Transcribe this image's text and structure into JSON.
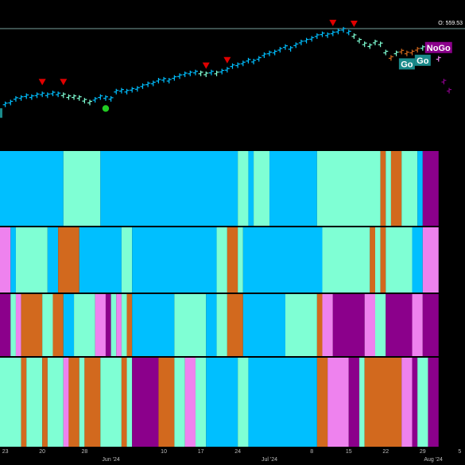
{
  "colors": {
    "background": "#000000",
    "strong_go": "#00bfff",
    "weak_go": "#7fffd4",
    "weak_nogo": "#d2691e",
    "nogo": "#ee82ee",
    "strong_nogo": "#8b008b",
    "arrow": "#e00000",
    "dot": "#22cc22",
    "grid": "#333333",
    "divider": "#2a2a2a"
  },
  "chart_data": {
    "type": "bar",
    "price_label": "O: 559.53",
    "x_ticks": [
      "23",
      "20",
      "28",
      "Jun '24",
      "10",
      "17",
      "24",
      "Jul '24",
      "8",
      "15",
      "22",
      "29",
      "Aug '24",
      "5"
    ],
    "x_tick_days": [
      -8,
      -1,
      7,
      12,
      22,
      29,
      36,
      42,
      50,
      57,
      64,
      71,
      73,
      78
    ],
    "x_range_days": [
      -9,
      79
    ],
    "y_range": [
      420,
      565
    ],
    "bars": [
      {
        "d": -8,
        "v": 470,
        "s": "strong_go"
      },
      {
        "d": -7,
        "v": 472,
        "s": "strong_go"
      },
      {
        "d": -6,
        "v": 476,
        "s": "strong_go"
      },
      {
        "d": -5,
        "v": 477,
        "s": "strong_go"
      },
      {
        "d": -4,
        "v": 479,
        "s": "strong_go"
      },
      {
        "d": -3,
        "v": 478,
        "s": "strong_go"
      },
      {
        "d": -2,
        "v": 480,
        "s": "strong_go"
      },
      {
        "d": -1,
        "v": 481,
        "s": "strong_go"
      },
      {
        "d": 0,
        "v": 480,
        "s": "strong_go"
      },
      {
        "d": 1,
        "v": 482,
        "s": "strong_go"
      },
      {
        "d": 2,
        "v": 481,
        "s": "strong_go"
      },
      {
        "d": 3,
        "v": 480,
        "s": "weak_go"
      },
      {
        "d": 4,
        "v": 478,
        "s": "weak_go"
      },
      {
        "d": 5,
        "v": 478,
        "s": "weak_go"
      },
      {
        "d": 6,
        "v": 477,
        "s": "weak_go"
      },
      {
        "d": 7,
        "v": 474,
        "s": "weak_go"
      },
      {
        "d": 8,
        "v": 472,
        "s": "weak_go"
      },
      {
        "d": 9,
        "v": 475,
        "s": "strong_go"
      },
      {
        "d": 10,
        "v": 478,
        "s": "strong_go"
      },
      {
        "d": 11,
        "v": 477,
        "s": "strong_go"
      },
      {
        "d": 12,
        "v": 476,
        "s": "strong_go"
      },
      {
        "d": 13,
        "v": 484,
        "s": "strong_go"
      },
      {
        "d": 14,
        "v": 485,
        "s": "strong_go"
      },
      {
        "d": 15,
        "v": 484,
        "s": "strong_go"
      },
      {
        "d": 16,
        "v": 486,
        "s": "strong_go"
      },
      {
        "d": 17,
        "v": 487,
        "s": "strong_go"
      },
      {
        "d": 18,
        "v": 490,
        "s": "strong_go"
      },
      {
        "d": 19,
        "v": 492,
        "s": "strong_go"
      },
      {
        "d": 20,
        "v": 493,
        "s": "strong_go"
      },
      {
        "d": 21,
        "v": 496,
        "s": "strong_go"
      },
      {
        "d": 22,
        "v": 497,
        "s": "strong_go"
      },
      {
        "d": 23,
        "v": 496,
        "s": "strong_go"
      },
      {
        "d": 24,
        "v": 499,
        "s": "strong_go"
      },
      {
        "d": 25,
        "v": 501,
        "s": "strong_go"
      },
      {
        "d": 26,
        "v": 503,
        "s": "strong_go"
      },
      {
        "d": 27,
        "v": 504,
        "s": "strong_go"
      },
      {
        "d": 28,
        "v": 505,
        "s": "strong_go"
      },
      {
        "d": 29,
        "v": 504,
        "s": "weak_go"
      },
      {
        "d": 30,
        "v": 503,
        "s": "weak_go"
      },
      {
        "d": 31,
        "v": 505,
        "s": "strong_go"
      },
      {
        "d": 32,
        "v": 504,
        "s": "weak_go"
      },
      {
        "d": 33,
        "v": 506,
        "s": "strong_go"
      },
      {
        "d": 34,
        "v": 508,
        "s": "strong_go"
      },
      {
        "d": 35,
        "v": 512,
        "s": "strong_go"
      },
      {
        "d": 36,
        "v": 513,
        "s": "strong_go"
      },
      {
        "d": 37,
        "v": 515,
        "s": "strong_go"
      },
      {
        "d": 38,
        "v": 518,
        "s": "strong_go"
      },
      {
        "d": 39,
        "v": 517,
        "s": "strong_go"
      },
      {
        "d": 40,
        "v": 520,
        "s": "strong_go"
      },
      {
        "d": 41,
        "v": 524,
        "s": "strong_go"
      },
      {
        "d": 42,
        "v": 526,
        "s": "strong_go"
      },
      {
        "d": 43,
        "v": 527,
        "s": "strong_go"
      },
      {
        "d": 44,
        "v": 530,
        "s": "strong_go"
      },
      {
        "d": 45,
        "v": 533,
        "s": "strong_go"
      },
      {
        "d": 46,
        "v": 531,
        "s": "strong_go"
      },
      {
        "d": 47,
        "v": 535,
        "s": "strong_go"
      },
      {
        "d": 48,
        "v": 538,
        "s": "strong_go"
      },
      {
        "d": 49,
        "v": 540,
        "s": "strong_go"
      },
      {
        "d": 50,
        "v": 542,
        "s": "strong_go"
      },
      {
        "d": 51,
        "v": 545,
        "s": "strong_go"
      },
      {
        "d": 52,
        "v": 547,
        "s": "strong_go"
      },
      {
        "d": 53,
        "v": 546,
        "s": "strong_go"
      },
      {
        "d": 54,
        "v": 548,
        "s": "strong_go"
      },
      {
        "d": 55,
        "v": 550,
        "s": "strong_go"
      },
      {
        "d": 56,
        "v": 552,
        "s": "strong_go"
      },
      {
        "d": 57,
        "v": 549,
        "s": "strong_go"
      },
      {
        "d": 58,
        "v": 545,
        "s": "weak_go"
      },
      {
        "d": 59,
        "v": 540,
        "s": "weak_go"
      },
      {
        "d": 60,
        "v": 536,
        "s": "weak_go"
      },
      {
        "d": 61,
        "v": 534,
        "s": "weak_go"
      },
      {
        "d": 62,
        "v": 538,
        "s": "weak_go"
      },
      {
        "d": 63,
        "v": 536,
        "s": "weak_go"
      },
      {
        "d": 64,
        "v": 527,
        "s": "weak_go"
      },
      {
        "d": 65,
        "v": 521,
        "s": "weak_nogo"
      },
      {
        "d": 66,
        "v": 526,
        "s": "weak_go"
      },
      {
        "d": 67,
        "v": 528,
        "s": "weak_nogo"
      },
      {
        "d": 68,
        "v": 526,
        "s": "weak_nogo"
      },
      {
        "d": 69,
        "v": 527,
        "s": "weak_nogo"
      },
      {
        "d": 70,
        "v": 530,
        "s": "weak_nogo"
      },
      {
        "d": 71,
        "v": 532,
        "s": "weak_go"
      },
      {
        "d": 72,
        "v": 535,
        "s": "weak_go"
      },
      {
        "d": 73,
        "v": 530,
        "s": "nogo"
      },
      {
        "d": 74,
        "v": 520,
        "s": "nogo"
      },
      {
        "d": 75,
        "v": 495,
        "s": "strong_nogo"
      },
      {
        "d": 76,
        "v": 485,
        "s": "strong_nogo"
      }
    ],
    "down_arrows": [
      {
        "d": -1,
        "v": 494
      },
      {
        "d": 3,
        "v": 494
      },
      {
        "d": 30,
        "v": 512
      },
      {
        "d": 34,
        "v": 518
      },
      {
        "d": 54,
        "v": 559
      },
      {
        "d": 58,
        "v": 558
      }
    ],
    "go_dots": [
      {
        "d": 11,
        "v": 465
      }
    ],
    "badges": [
      {
        "text": "Go",
        "d": 68,
        "v": 514,
        "state": "weak_go"
      },
      {
        "text": "Go",
        "d": 71,
        "v": 518,
        "state": "weak_go"
      },
      {
        "text": "NoGo",
        "d": 74,
        "v": 532,
        "state": "strong_nogo"
      }
    ],
    "edge_marker": {
      "d": -9,
      "v": 460,
      "state": "weak_go"
    },
    "panels": [
      {
        "segments": [
          {
            "from": -9,
            "to": 3,
            "s": "strong_go"
          },
          {
            "from": 3,
            "to": 10,
            "s": "weak_go"
          },
          {
            "from": 10,
            "to": 36,
            "s": "strong_go"
          },
          {
            "from": 36,
            "to": 38,
            "s": "weak_go"
          },
          {
            "from": 38,
            "to": 39,
            "s": "strong_go"
          },
          {
            "from": 39,
            "to": 42,
            "s": "weak_go"
          },
          {
            "from": 42,
            "to": 51,
            "s": "strong_go"
          },
          {
            "from": 51,
            "to": 63,
            "s": "weak_go"
          },
          {
            "from": 63,
            "to": 64,
            "s": "weak_nogo"
          },
          {
            "from": 64,
            "to": 65,
            "s": "weak_go"
          },
          {
            "from": 65,
            "to": 67,
            "s": "weak_nogo"
          },
          {
            "from": 67,
            "to": 70,
            "s": "weak_go"
          },
          {
            "from": 70,
            "to": 71,
            "s": "strong_go"
          },
          {
            "from": 71,
            "to": 74,
            "s": "strong_nogo"
          }
        ]
      },
      {
        "segments": [
          {
            "from": -9,
            "to": -7,
            "s": "nogo"
          },
          {
            "from": -7,
            "to": -6,
            "s": "strong_go"
          },
          {
            "from": -6,
            "to": 0,
            "s": "weak_go"
          },
          {
            "from": 0,
            "to": 2,
            "s": "strong_go"
          },
          {
            "from": 2,
            "to": 6,
            "s": "weak_nogo"
          },
          {
            "from": 6,
            "to": 14,
            "s": "strong_go"
          },
          {
            "from": 14,
            "to": 16,
            "s": "weak_go"
          },
          {
            "from": 16,
            "to": 32,
            "s": "strong_go"
          },
          {
            "from": 32,
            "to": 34,
            "s": "weak_go"
          },
          {
            "from": 34,
            "to": 36,
            "s": "weak_nogo"
          },
          {
            "from": 36,
            "to": 37,
            "s": "weak_go"
          },
          {
            "from": 37,
            "to": 52,
            "s": "strong_go"
          },
          {
            "from": 52,
            "to": 61,
            "s": "weak_go"
          },
          {
            "from": 61,
            "to": 62,
            "s": "weak_nogo"
          },
          {
            "from": 62,
            "to": 63,
            "s": "weak_go"
          },
          {
            "from": 63,
            "to": 64,
            "s": "weak_nogo"
          },
          {
            "from": 64,
            "to": 69,
            "s": "weak_go"
          },
          {
            "from": 69,
            "to": 71,
            "s": "strong_go"
          },
          {
            "from": 71,
            "to": 74,
            "s": "nogo"
          }
        ]
      },
      {
        "segments": [
          {
            "from": -9,
            "to": -7,
            "s": "strong_nogo"
          },
          {
            "from": -7,
            "to": -6,
            "s": "weak_go"
          },
          {
            "from": -6,
            "to": -5,
            "s": "nogo"
          },
          {
            "from": -5,
            "to": -1,
            "s": "weak_nogo"
          },
          {
            "from": -1,
            "to": 1,
            "s": "weak_go"
          },
          {
            "from": 1,
            "to": 3,
            "s": "weak_nogo"
          },
          {
            "from": 3,
            "to": 5,
            "s": "strong_go"
          },
          {
            "from": 5,
            "to": 9,
            "s": "weak_go"
          },
          {
            "from": 9,
            "to": 11,
            "s": "nogo"
          },
          {
            "from": 11,
            "to": 12,
            "s": "strong_nogo"
          },
          {
            "from": 12,
            "to": 13,
            "s": "weak_go"
          },
          {
            "from": 13,
            "to": 14,
            "s": "nogo"
          },
          {
            "from": 14,
            "to": 15,
            "s": "weak_go"
          },
          {
            "from": 15,
            "to": 16,
            "s": "weak_nogo"
          },
          {
            "from": 16,
            "to": 24,
            "s": "strong_go"
          },
          {
            "from": 24,
            "to": 30,
            "s": "weak_go"
          },
          {
            "from": 30,
            "to": 32,
            "s": "strong_go"
          },
          {
            "from": 32,
            "to": 34,
            "s": "weak_go"
          },
          {
            "from": 34,
            "to": 37,
            "s": "weak_nogo"
          },
          {
            "from": 37,
            "to": 45,
            "s": "strong_go"
          },
          {
            "from": 45,
            "to": 51,
            "s": "weak_go"
          },
          {
            "from": 51,
            "to": 52,
            "s": "weak_nogo"
          },
          {
            "from": 52,
            "to": 54,
            "s": "nogo"
          },
          {
            "from": 54,
            "to": 60,
            "s": "strong_nogo"
          },
          {
            "from": 60,
            "to": 62,
            "s": "nogo"
          },
          {
            "from": 62,
            "to": 64,
            "s": "weak_go"
          },
          {
            "from": 64,
            "to": 69,
            "s": "strong_nogo"
          },
          {
            "from": 69,
            "to": 71,
            "s": "nogo"
          },
          {
            "from": 71,
            "to": 74,
            "s": "strong_nogo"
          }
        ]
      },
      {
        "segments": [
          {
            "from": -9,
            "to": -5,
            "s": "weak_go"
          },
          {
            "from": -5,
            "to": -4,
            "s": "weak_nogo"
          },
          {
            "from": -4,
            "to": -1,
            "s": "weak_go"
          },
          {
            "from": -1,
            "to": 0,
            "s": "weak_nogo"
          },
          {
            "from": 0,
            "to": 3,
            "s": "weak_go"
          },
          {
            "from": 3,
            "to": 4,
            "s": "nogo"
          },
          {
            "from": 4,
            "to": 6,
            "s": "weak_nogo"
          },
          {
            "from": 6,
            "to": 7,
            "s": "weak_go"
          },
          {
            "from": 7,
            "to": 10,
            "s": "weak_nogo"
          },
          {
            "from": 10,
            "to": 14,
            "s": "weak_go"
          },
          {
            "from": 14,
            "to": 15,
            "s": "weak_nogo"
          },
          {
            "from": 15,
            "to": 16,
            "s": "weak_go"
          },
          {
            "from": 16,
            "to": 21,
            "s": "strong_nogo"
          },
          {
            "from": 21,
            "to": 24,
            "s": "weak_nogo"
          },
          {
            "from": 24,
            "to": 26,
            "s": "weak_go"
          },
          {
            "from": 26,
            "to": 28,
            "s": "nogo"
          },
          {
            "from": 28,
            "to": 30,
            "s": "weak_go"
          },
          {
            "from": 30,
            "to": 36,
            "s": "strong_go"
          },
          {
            "from": 36,
            "to": 38,
            "s": "weak_go"
          },
          {
            "from": 38,
            "to": 51,
            "s": "strong_go"
          },
          {
            "from": 51,
            "to": 53,
            "s": "weak_nogo"
          },
          {
            "from": 53,
            "to": 57,
            "s": "nogo"
          },
          {
            "from": 57,
            "to": 59,
            "s": "strong_nogo"
          },
          {
            "from": 59,
            "to": 60,
            "s": "weak_go"
          },
          {
            "from": 60,
            "to": 67,
            "s": "weak_nogo"
          },
          {
            "from": 67,
            "to": 69,
            "s": "nogo"
          },
          {
            "from": 69,
            "to": 70,
            "s": "strong_nogo"
          },
          {
            "from": 70,
            "to": 72,
            "s": "weak_go"
          },
          {
            "from": 72,
            "to": 74,
            "s": "strong_nogo"
          }
        ]
      }
    ]
  }
}
